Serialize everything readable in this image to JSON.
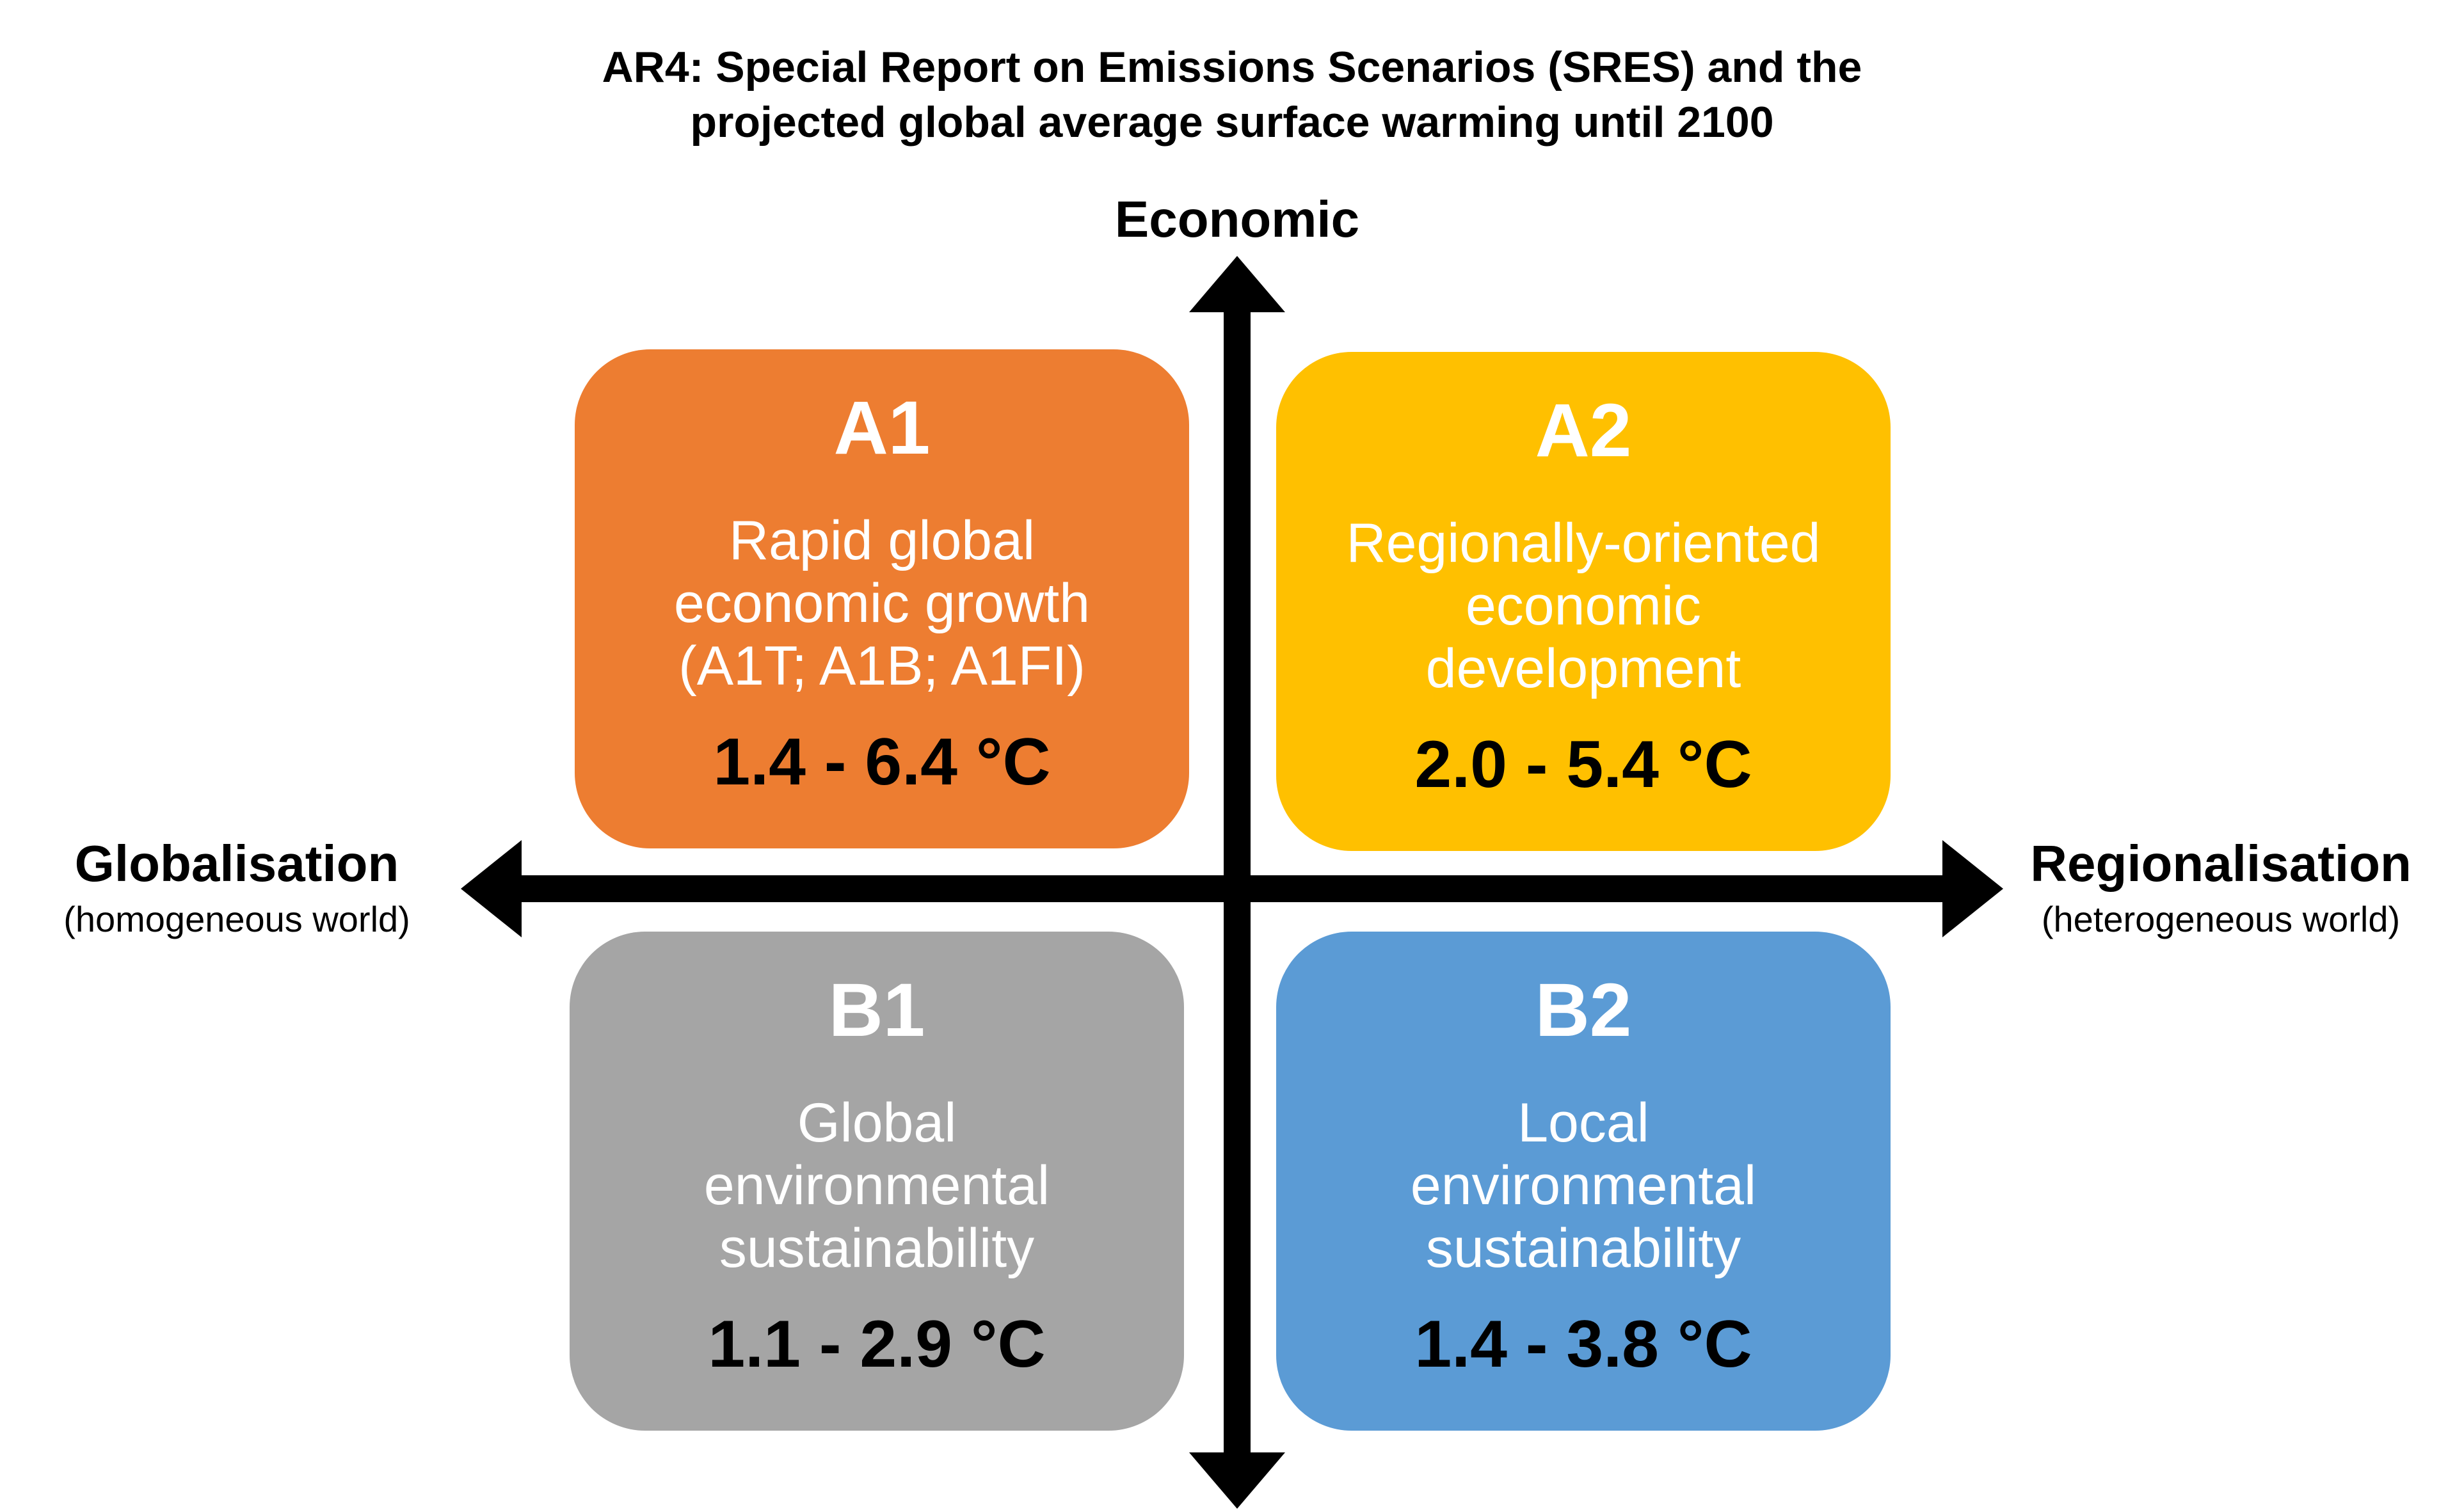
{
  "title": {
    "line1": "AR4:  Special Report on Emissions Scenarios (SRES) and the",
    "line2": "projected global average surface warming until 2100"
  },
  "axes": {
    "top": "Economic",
    "left": {
      "label": "Globalisation",
      "sub": "(homogeneous world)"
    },
    "right": {
      "label": "Regionalisation",
      "sub": "(heterogeneous world)"
    }
  },
  "quadrants": [
    {
      "code": "A1",
      "lines": [
        "Rapid global",
        "economic growth",
        "(A1T; A1B; A1FI)"
      ],
      "range": "1.4 - 6.4 °C",
      "color": "#ED7D31"
    },
    {
      "code": "A2",
      "lines": [
        "Regionally-oriented",
        "economic",
        "development"
      ],
      "range": "2.0 - 5.4 °C",
      "color": "#FFC000"
    },
    {
      "code": "B1",
      "lines": [
        "Global",
        "environmental",
        "sustainability"
      ],
      "range": "1.1 - 2.9 °C",
      "color": "#A5A5A5"
    },
    {
      "code": "B2",
      "lines": [
        "Local",
        "environmental",
        "sustainability"
      ],
      "range": "1.4 - 3.8 °C",
      "color": "#5B9BD5"
    }
  ]
}
